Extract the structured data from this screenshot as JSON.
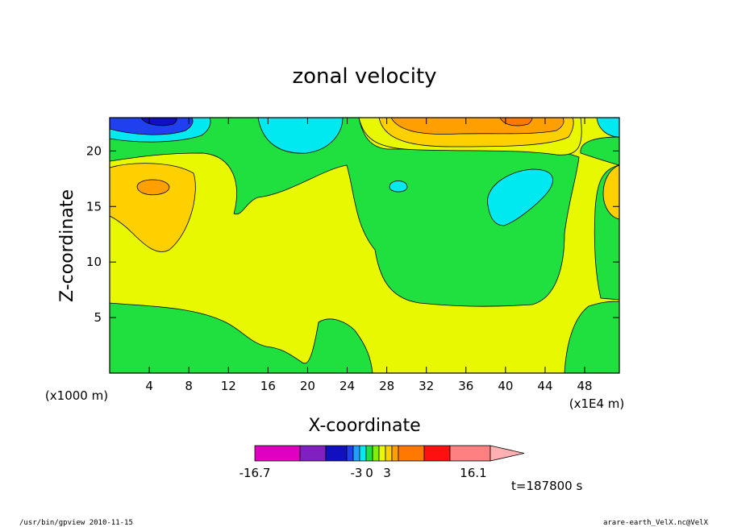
{
  "chart_data": {
    "type": "heatmap",
    "title": "zonal velocity",
    "xlabel": "X-coordinate",
    "ylabel": "Z-coordinate",
    "x_unit_note": "(x1E4 m)",
    "y_unit_note": "(x1000 m)",
    "xlim": [
      0,
      51.5
    ],
    "ylim": [
      0,
      23
    ],
    "x_ticks": [
      "4",
      "8",
      "12",
      "16",
      "20",
      "24",
      "28",
      "32",
      "36",
      "40",
      "44",
      "48"
    ],
    "x_tick_values": [
      4,
      8,
      12,
      16,
      20,
      24,
      28,
      32,
      36,
      40,
      44,
      48
    ],
    "y_ticks": [
      "5",
      "10",
      "15",
      "20"
    ],
    "y_tick_values": [
      5,
      10,
      15,
      20
    ],
    "colorbar": {
      "colors": [
        "#e000c0",
        "#8020c0",
        "#1010c0",
        "#2040f0",
        "#20a0ff",
        "#00e8f0",
        "#20e040",
        "#80f000",
        "#e8f800",
        "#ffd000",
        "#ffa000",
        "#ff7800",
        "#ff1010",
        "#ff8080",
        "#ffb0b0"
      ],
      "labels": [
        "-16.7",
        "-3",
        "0",
        "3",
        "16.1"
      ],
      "label_values": [
        -16.7,
        -3,
        0,
        3,
        16.1
      ]
    },
    "regions": [
      {
        "level": "positive weak",
        "color": "#e8f800",
        "description": "interior"
      },
      {
        "level": "negative weak",
        "color": "#20e040"
      },
      {
        "level": "positive moderate",
        "color": "#ffd000"
      },
      {
        "level": "positive strong",
        "color": "#ffa000"
      },
      {
        "level": "negative moderate",
        "color": "#00e8f0"
      },
      {
        "level": "negative strong",
        "color": "#1010c0"
      }
    ]
  },
  "annotations": {
    "time": "t=187800 s",
    "footer_left": "/usr/bin/gpview  2010-11-15",
    "footer_right": "arare-earth_VelX.nc@VelX"
  },
  "labels": {
    "x_unit": "(x1E4 m)",
    "y_unit": "(x1000 m)"
  }
}
